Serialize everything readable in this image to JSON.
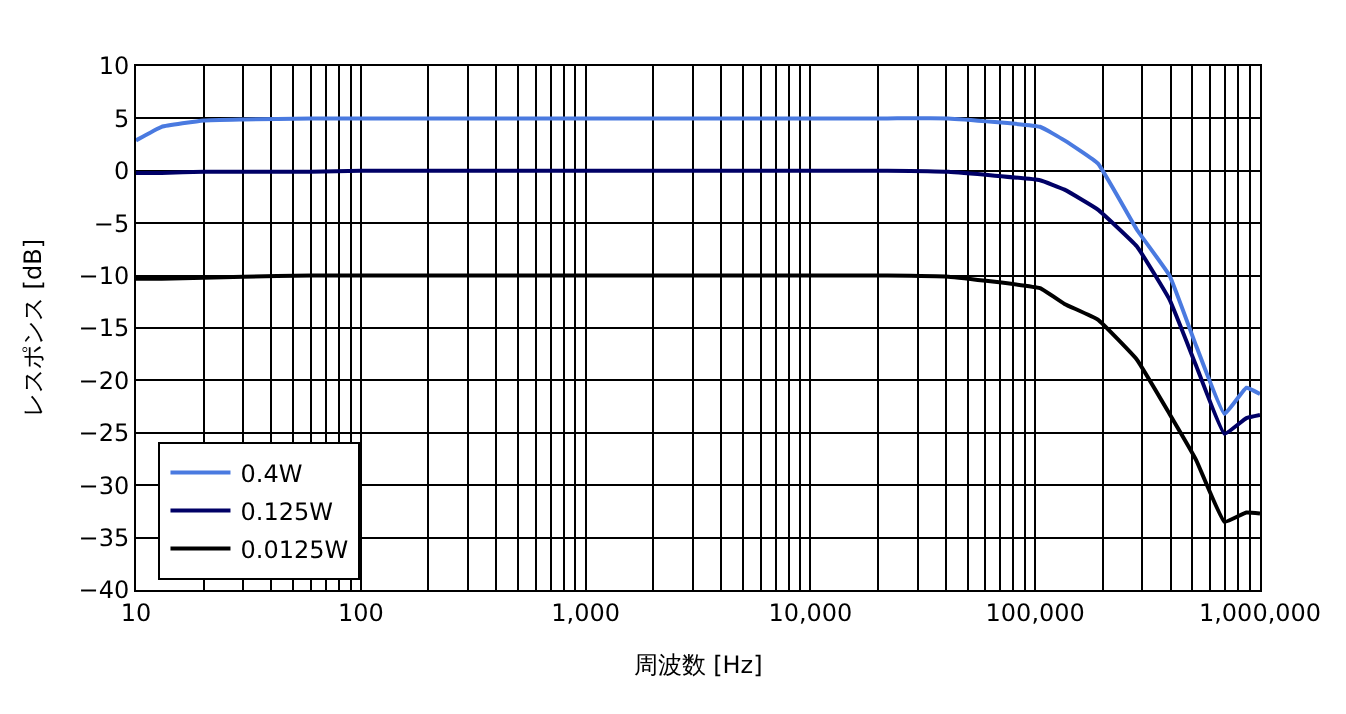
{
  "chart_data": {
    "type": "line",
    "xlabel": "周波数 [Hz]",
    "ylabel": "レスポンス [dB]",
    "log": "x",
    "grid": true,
    "legend": "bottom left",
    "marker": "none",
    "line_style": "solid",
    "x": [
      10,
      13,
      20,
      30,
      60,
      100,
      1000,
      10000,
      22000,
      41000,
      105000,
      135000,
      190000,
      283000,
      396000,
      520000,
      695000,
      870000,
      1000000
    ],
    "series": [
      {
        "name": "0.4W",
        "color": "#4a7ae0",
        "values": [
          2.9,
          4.2,
          4.8,
          4.9,
          5.0,
          5.0,
          5.0,
          5.0,
          5.0,
          5.0,
          4.2,
          2.9,
          0.7,
          -5.6,
          -10,
          -16.7,
          -23.2,
          -20.7,
          -21.3
        ]
      },
      {
        "name": "0.125W",
        "color": "#000066",
        "values": [
          -0.2,
          -0.2,
          -0.1,
          -0.1,
          -0.1,
          0,
          0,
          0,
          0,
          -0.1,
          -0.9,
          -1.8,
          -3.7,
          -7.2,
          -12.3,
          -18.6,
          -25.1,
          -23.6,
          -23.3
        ]
      },
      {
        "name": "0.0125W",
        "color": "#000000",
        "values": [
          -10.3,
          -10.3,
          -10.2,
          -10.1,
          -10,
          -10,
          -10,
          -10,
          -10,
          -10.1,
          -11.2,
          -12.7,
          -14.2,
          -18,
          -23.2,
          -27.6,
          -33.5,
          -32.6,
          -32.7
        ]
      }
    ],
    "xlim": [
      10,
      1000000
    ],
    "xticks": [
      {
        "value": 10,
        "label": "10"
      },
      {
        "value": 20,
        "label": null
      },
      {
        "value": 30,
        "label": null
      },
      {
        "value": 40,
        "label": null
      },
      {
        "value": 50,
        "label": null
      },
      {
        "value": 60,
        "label": null
      },
      {
        "value": 70,
        "label": null
      },
      {
        "value": 80,
        "label": null
      },
      {
        "value": 90,
        "label": null
      },
      {
        "value": 100,
        "label": "100"
      },
      {
        "value": 200,
        "label": null
      },
      {
        "value": 300,
        "label": null
      },
      {
        "value": 400,
        "label": null
      },
      {
        "value": 500,
        "label": null
      },
      {
        "value": 600,
        "label": null
      },
      {
        "value": 700,
        "label": null
      },
      {
        "value": 800,
        "label": null
      },
      {
        "value": 900,
        "label": null
      },
      {
        "value": 1000,
        "label": "1,000"
      },
      {
        "value": 2000,
        "label": null
      },
      {
        "value": 3000,
        "label": null
      },
      {
        "value": 4000,
        "label": null
      },
      {
        "value": 5000,
        "label": null
      },
      {
        "value": 6000,
        "label": null
      },
      {
        "value": 7000,
        "label": null
      },
      {
        "value": 8000,
        "label": null
      },
      {
        "value": 9000,
        "label": null
      },
      {
        "value": 10000,
        "label": "10,000"
      },
      {
        "value": 20000,
        "label": null
      },
      {
        "value": 30000,
        "label": null
      },
      {
        "value": 40000,
        "label": null
      },
      {
        "value": 50000,
        "label": null
      },
      {
        "value": 60000,
        "label": null
      },
      {
        "value": 70000,
        "label": null
      },
      {
        "value": 80000,
        "label": null
      },
      {
        "value": 90000,
        "label": null
      },
      {
        "value": 100000,
        "label": "100,000"
      },
      {
        "value": 200000,
        "label": null
      },
      {
        "value": 300000,
        "label": null
      },
      {
        "value": 400000,
        "label": null
      },
      {
        "value": 500000,
        "label": null
      },
      {
        "value": 600000,
        "label": null
      },
      {
        "value": 700000,
        "label": null
      },
      {
        "value": 800000,
        "label": null
      },
      {
        "value": 900000,
        "label": null
      },
      {
        "value": 1000000,
        "label": "1,000,000"
      }
    ],
    "ylim": [
      -40,
      10
    ],
    "yticks": [
      -40,
      -35,
      -30,
      -25,
      -20,
      -15,
      -10,
      -5,
      0,
      5,
      10
    ]
  }
}
